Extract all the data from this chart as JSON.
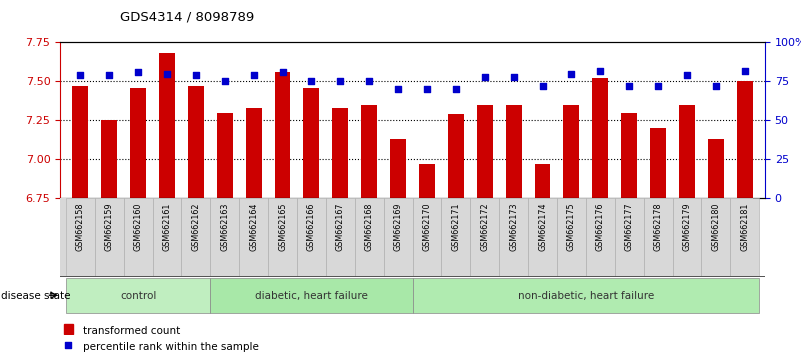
{
  "title": "GDS4314 / 8098789",
  "samples": [
    "GSM662158",
    "GSM662159",
    "GSM662160",
    "GSM662161",
    "GSM662162",
    "GSM662163",
    "GSM662164",
    "GSM662165",
    "GSM662166",
    "GSM662167",
    "GSM662168",
    "GSM662169",
    "GSM662170",
    "GSM662171",
    "GSM662172",
    "GSM662173",
    "GSM662174",
    "GSM662175",
    "GSM662176",
    "GSM662177",
    "GSM662178",
    "GSM662179",
    "GSM662180",
    "GSM662181"
  ],
  "bar_values": [
    7.47,
    7.25,
    7.46,
    7.68,
    7.47,
    7.3,
    7.33,
    7.56,
    7.46,
    7.33,
    7.35,
    7.13,
    6.97,
    7.29,
    7.35,
    7.35,
    6.97,
    7.35,
    7.52,
    7.3,
    7.2,
    7.35,
    7.13,
    7.5
  ],
  "percentile_values": [
    79,
    79,
    81,
    80,
    79,
    75,
    79,
    81,
    75,
    75,
    75,
    70,
    70,
    70,
    78,
    78,
    72,
    80,
    82,
    72,
    72,
    79,
    72,
    82
  ],
  "ylim_left": [
    6.75,
    7.75
  ],
  "ylim_right": [
    0,
    100
  ],
  "yticks_left": [
    6.75,
    7.0,
    7.25,
    7.5,
    7.75
  ],
  "yticks_right": [
    0,
    25,
    50,
    75,
    100
  ],
  "ytick_right_labels": [
    "0",
    "25",
    "50",
    "75",
    "100%"
  ],
  "bar_color": "#cc0000",
  "dot_color": "#0000cc",
  "group_defs": [
    {
      "label": "control",
      "start": 0,
      "end": 4,
      "color": "#c0eec0"
    },
    {
      "label": "diabetic, heart failure",
      "start": 5,
      "end": 11,
      "color": "#a8e8a8"
    },
    {
      "label": "non-diabetic, heart failure",
      "start": 12,
      "end": 23,
      "color": "#b0ebb0"
    }
  ],
  "disease_state_label": "disease state",
  "legend_bar_label": "transformed count",
  "legend_dot_label": "percentile rank within the sample",
  "tick_label_color_left": "#cc0000",
  "tick_label_color_right": "#0000cc",
  "background_color": "#ffffff"
}
